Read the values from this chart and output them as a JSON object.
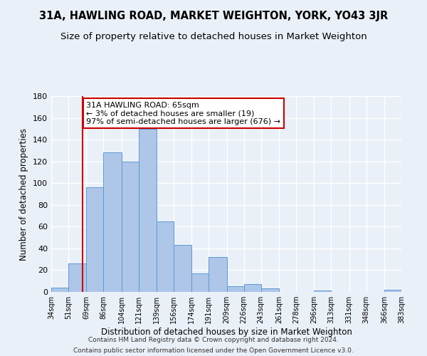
{
  "title": "31A, HAWLING ROAD, MARKET WEIGHTON, YORK, YO43 3JR",
  "subtitle": "Size of property relative to detached houses in Market Weighton",
  "xlabel": "Distribution of detached houses by size in Market Weighton",
  "ylabel": "Number of detached properties",
  "bar_edges": [
    34,
    51,
    69,
    86,
    104,
    121,
    139,
    156,
    174,
    191,
    209,
    226,
    243,
    261,
    278,
    296,
    313,
    331,
    348,
    366,
    383
  ],
  "bar_heights": [
    4,
    26,
    96,
    128,
    120,
    150,
    65,
    43,
    17,
    32,
    5,
    7,
    3,
    0,
    0,
    1,
    0,
    0,
    0,
    2
  ],
  "bar_color": "#aec6e8",
  "bar_edge_color": "#5b9bd5",
  "tick_labels": [
    "34sqm",
    "51sqm",
    "69sqm",
    "86sqm",
    "104sqm",
    "121sqm",
    "139sqm",
    "156sqm",
    "174sqm",
    "191sqm",
    "209sqm",
    "226sqm",
    "243sqm",
    "261sqm",
    "278sqm",
    "296sqm",
    "313sqm",
    "331sqm",
    "348sqm",
    "366sqm",
    "383sqm"
  ],
  "ylim": [
    0,
    180
  ],
  "yticks": [
    0,
    20,
    40,
    60,
    80,
    100,
    120,
    140,
    160,
    180
  ],
  "vline_x": 65,
  "vline_color": "#cc0000",
  "annotation_title": "31A HAWLING ROAD: 65sqm",
  "annotation_line1": "← 3% of detached houses are smaller (19)",
  "annotation_line2": "97% of semi-detached houses are larger (676) →",
  "annotation_box_color": "#ffffff",
  "annotation_box_edge": "#cc0000",
  "footer_line1": "Contains HM Land Registry data © Crown copyright and database right 2024.",
  "footer_line2": "Contains public sector information licensed under the Open Government Licence v3.0.",
  "bg_color": "#eaf0f8",
  "plot_bg_color": "#eaf0f8",
  "grid_color": "#ffffff",
  "title_fontsize": 10.5,
  "subtitle_fontsize": 9.5
}
